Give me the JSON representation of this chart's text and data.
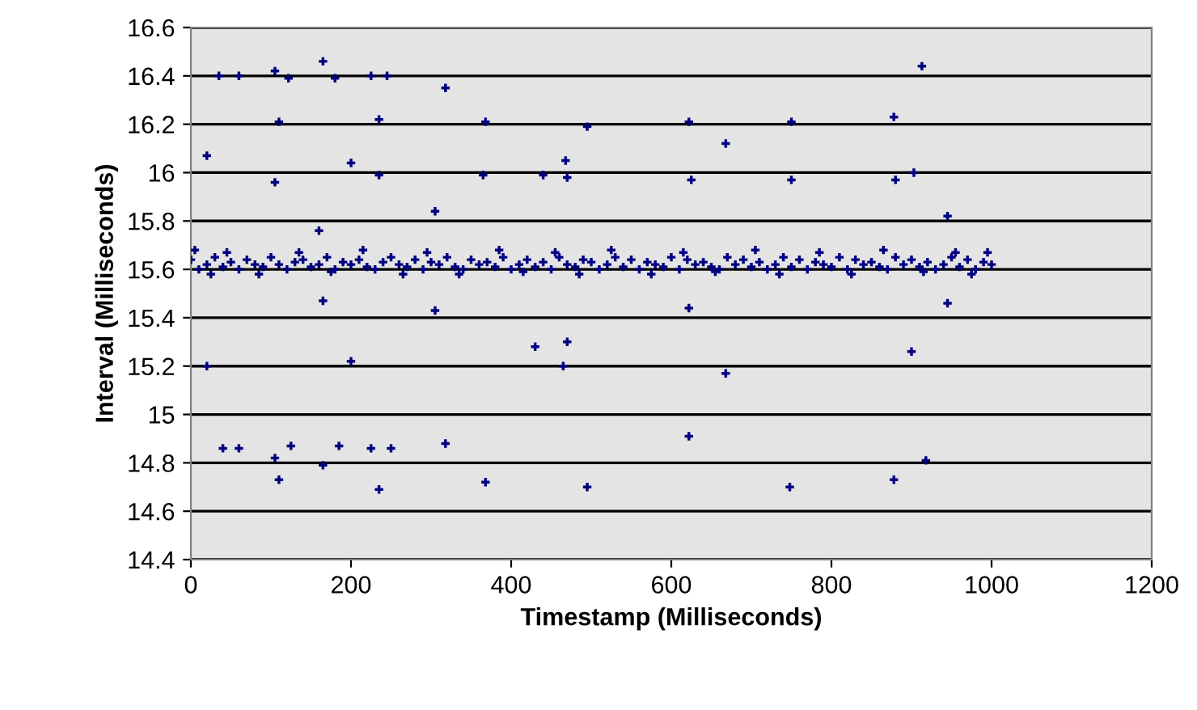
{
  "chart_data": {
    "type": "scatter",
    "xlabel": "Timestamp (Milliseconds)",
    "ylabel": "Interval (Milliseconds)",
    "xlim": [
      0,
      1200
    ],
    "xticks": [
      0,
      200,
      400,
      600,
      800,
      1000,
      1200
    ],
    "ylim": [
      14.4,
      16.6
    ],
    "yticks": [
      14.4,
      14.6,
      14.8,
      15,
      15.2,
      15.4,
      15.6,
      15.8,
      16,
      16.2,
      16.4,
      16.6
    ],
    "grid": "y",
    "marker": "cross",
    "series": [
      {
        "color": "#000080",
        "x": [
          0,
          10,
          20,
          30,
          40,
          50,
          60,
          70,
          80,
          90,
          100,
          110,
          120,
          130,
          140,
          150,
          160,
          170,
          180,
          190,
          200,
          210,
          220,
          230,
          240,
          250,
          260,
          270,
          280,
          290,
          300,
          310,
          320,
          330,
          340,
          350,
          360,
          370,
          380,
          390,
          400,
          410,
          420,
          430,
          440,
          450,
          460,
          470,
          480,
          490,
          500,
          510,
          520,
          530,
          540,
          550,
          560,
          570,
          580,
          590,
          600,
          610,
          620,
          630,
          640,
          650,
          660,
          670,
          680,
          690,
          700,
          710,
          720,
          730,
          740,
          750,
          760,
          770,
          780,
          790,
          800,
          810,
          820,
          830,
          840,
          850,
          860,
          870,
          880,
          890,
          900,
          910,
          920,
          930,
          940,
          950,
          960,
          970,
          980,
          990,
          1000,
          5,
          25,
          45,
          85,
          135,
          175,
          215,
          265,
          295,
          335,
          385,
          415,
          455,
          485,
          525,
          575,
          615,
          655,
          705,
          735,
          785,
          825,
          865,
          915,
          955,
          975,
          995,
          35,
          60,
          105,
          122,
          165,
          180,
          225,
          245,
          318,
          368,
          110,
          235,
          20,
          105,
          200,
          235,
          305,
          365,
          440,
          468,
          470,
          495,
          622,
          625,
          668,
          750,
          750,
          878,
          880,
          903,
          913,
          945,
          160,
          165,
          305,
          430,
          465,
          470,
          622,
          668,
          900,
          945,
          20,
          200,
          40,
          60,
          105,
          110,
          125,
          165,
          185,
          225,
          235,
          250,
          318,
          368,
          495,
          622,
          748,
          878,
          918
        ],
        "values": [
          15.64,
          15.6,
          15.62,
          15.65,
          15.61,
          15.63,
          15.6,
          15.64,
          15.62,
          15.61,
          15.65,
          15.62,
          15.6,
          15.63,
          15.64,
          15.61,
          15.62,
          15.65,
          15.6,
          15.63,
          15.62,
          15.64,
          15.61,
          15.6,
          15.63,
          15.65,
          15.62,
          15.61,
          15.64,
          15.6,
          15.63,
          15.62,
          15.65,
          15.61,
          15.6,
          15.64,
          15.62,
          15.63,
          15.61,
          15.65,
          15.6,
          15.62,
          15.64,
          15.61,
          15.63,
          15.6,
          15.65,
          15.62,
          15.61,
          15.64,
          15.63,
          15.6,
          15.62,
          15.65,
          15.61,
          15.64,
          15.6,
          15.63,
          15.62,
          15.61,
          15.65,
          15.6,
          15.64,
          15.62,
          15.63,
          15.61,
          15.6,
          15.65,
          15.62,
          15.64,
          15.61,
          15.63,
          15.6,
          15.62,
          15.65,
          15.61,
          15.64,
          15.6,
          15.63,
          15.62,
          15.61,
          15.65,
          15.6,
          15.64,
          15.62,
          15.63,
          15.61,
          15.6,
          15.65,
          15.62,
          15.64,
          15.61,
          15.63,
          15.6,
          15.62,
          15.65,
          15.61,
          15.64,
          15.6,
          15.63,
          15.62,
          15.68,
          15.58,
          15.67,
          15.58,
          15.67,
          15.59,
          15.68,
          15.58,
          15.67,
          15.58,
          15.68,
          15.59,
          15.67,
          15.58,
          15.68,
          15.58,
          15.67,
          15.59,
          15.68,
          15.58,
          15.67,
          15.58,
          15.68,
          15.59,
          15.67,
          15.58,
          15.67,
          16.4,
          16.4,
          16.42,
          16.39,
          16.46,
          16.39,
          16.4,
          16.4,
          16.35,
          16.21,
          16.21,
          16.22,
          16.07,
          15.96,
          16.04,
          15.99,
          15.84,
          15.99,
          15.99,
          16.05,
          15.98,
          16.19,
          16.21,
          15.97,
          16.12,
          16.21,
          15.97,
          16.23,
          15.97,
          16.0,
          16.44,
          15.82,
          15.76,
          15.47,
          15.43,
          15.28,
          15.2,
          15.3,
          15.44,
          15.17,
          15.26,
          15.46,
          15.2,
          15.22,
          14.86,
          14.86,
          14.82,
          14.73,
          14.87,
          14.79,
          14.87,
          14.86,
          14.69,
          14.86,
          14.88,
          14.72,
          14.7,
          14.91,
          14.7,
          14.73,
          14.81
        ]
      }
    ]
  }
}
